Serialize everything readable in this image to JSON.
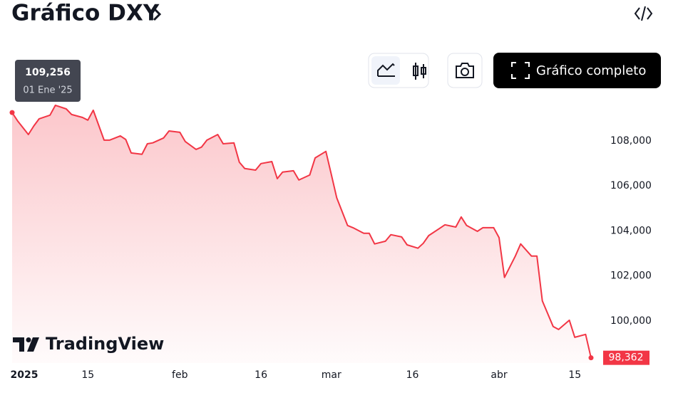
{
  "chart_data": {
    "type": "line",
    "title": "Gráfico DXY",
    "full_chart_button": "Gráfico completo",
    "logo": "TradingView",
    "x": [
      0,
      1,
      3,
      4,
      5,
      7,
      8,
      10,
      11,
      13,
      14,
      15,
      17,
      18,
      20,
      21,
      22,
      24,
      25,
      26,
      28,
      29,
      31,
      32,
      34,
      35,
      36,
      38,
      39,
      41,
      42,
      43,
      45,
      46,
      48,
      49,
      50,
      52,
      53,
      55,
      56,
      58,
      59,
      60,
      62,
      63,
      65,
      66,
      67,
      69,
      70,
      72,
      73,
      75,
      76,
      77,
      79,
      80,
      82,
      83,
      84,
      86,
      87,
      89,
      90,
      91,
      93,
      94,
      96,
      97,
      98,
      100,
      101,
      103,
      104,
      106,
      107
    ],
    "series": [
      {
        "color": "#f23645",
        "values": [
          109.256,
          108.89,
          108.28,
          108.66,
          108.98,
          109.14,
          109.58,
          109.42,
          109.17,
          109.04,
          108.92,
          109.36,
          108.03,
          108.03,
          108.22,
          108.06,
          107.46,
          107.4,
          107.87,
          107.91,
          108.13,
          108.44,
          108.38,
          107.97,
          107.62,
          107.72,
          108.03,
          108.28,
          107.87,
          107.91,
          107.05,
          106.77,
          106.7,
          106.99,
          107.08,
          106.32,
          106.61,
          106.67,
          106.26,
          106.48,
          107.24,
          107.53,
          106.51,
          105.47,
          104.24,
          104.14,
          103.89,
          103.89,
          103.42,
          103.54,
          103.83,
          103.73,
          103.38,
          103.23,
          103.45,
          103.79,
          104.11,
          104.27,
          104.17,
          104.62,
          104.24,
          103.98,
          104.14,
          104.14,
          103.7,
          101.93,
          102.88,
          103.42,
          102.88,
          102.88,
          100.89,
          99.75,
          99.62,
          100.03,
          99.27,
          99.4,
          98.362
        ]
      }
    ],
    "tooltip": {
      "value": 109.256,
      "label": "109,256",
      "date": "01 Ene '25"
    },
    "last_value": {
      "value": 98.362,
      "label": "98,362"
    },
    "xlim": [
      0,
      107
    ],
    "xticks": [
      {
        "value": 0,
        "label": "2025"
      },
      {
        "value": 14,
        "label": "15"
      },
      {
        "value": 31,
        "label": "feb"
      },
      {
        "value": 46,
        "label": "16"
      },
      {
        "value": 59,
        "label": "mar"
      },
      {
        "value": 74,
        "label": "16"
      },
      {
        "value": 90,
        "label": "abr"
      },
      {
        "value": 104,
        "label": "15"
      }
    ],
    "ylim": [
      98.13,
      109.83
    ],
    "yticks": [
      {
        "value": 100,
        "label": "100,000"
      },
      {
        "value": 102,
        "label": "102,000"
      },
      {
        "value": 104,
        "label": "104,000"
      },
      {
        "value": 106,
        "label": "106,000"
      },
      {
        "value": 108,
        "label": "108,000"
      }
    ]
  }
}
